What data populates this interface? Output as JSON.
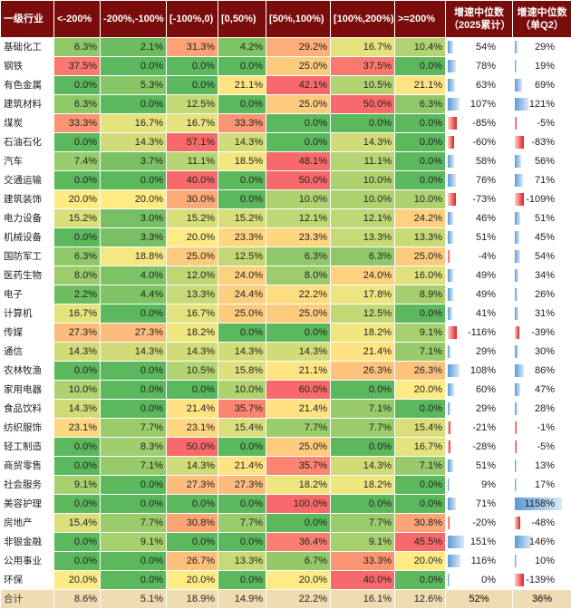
{
  "columns": [
    "一级行业",
    "<-200%",
    "-200%,-100%",
    "[-100%,0)",
    "[0,50%)",
    "[50%,100%)",
    "[100%,200%)",
    ">=200%",
    "增速中位数\n（2025累计）",
    "增速中位数\n（单Q2）"
  ],
  "rows": [
    {
      "name": "基础化工",
      "vals": [
        "6.3%",
        "2.1%",
        "31.3%",
        "4.2%",
        "29.2%",
        "16.7%",
        "10.4%"
      ],
      "g1": "54%",
      "g1v": 54,
      "g2": "29%",
      "g2v": 29
    },
    {
      "name": "钢铁",
      "vals": [
        "37.5%",
        "0.0%",
        "0.0%",
        "0.0%",
        "25.0%",
        "37.5%",
        "0.0%"
      ],
      "g1": "78%",
      "g1v": 78,
      "g2": "19%",
      "g2v": 19
    },
    {
      "name": "有色金属",
      "vals": [
        "0.0%",
        "5.3%",
        "0.0%",
        "21.1%",
        "42.1%",
        "10.5%",
        "21.1%"
      ],
      "g1": "63%",
      "g1v": 63,
      "g2": "69%",
      "g2v": 69
    },
    {
      "name": "建筑材料",
      "vals": [
        "6.3%",
        "0.0%",
        "12.5%",
        "0.0%",
        "25.0%",
        "50.0%",
        "6.3%"
      ],
      "g1": "107%",
      "g1v": 107,
      "g2": "121%",
      "g2v": 121
    },
    {
      "name": "煤炭",
      "vals": [
        "33.3%",
        "16.7%",
        "16.7%",
        "33.3%",
        "0.0%",
        "0.0%",
        "0.0%"
      ],
      "g1": "-85%",
      "g1v": -85,
      "g2": "-5%",
      "g2v": -5
    },
    {
      "name": "石油石化",
      "vals": [
        "0.0%",
        "14.3%",
        "57.1%",
        "14.3%",
        "0.0%",
        "14.3%",
        "0.0%"
      ],
      "g1": "-60%",
      "g1v": -60,
      "g2": "-83%",
      "g2v": -83
    },
    {
      "name": "汽车",
      "vals": [
        "7.4%",
        "3.7%",
        "11.1%",
        "18.5%",
        "48.1%",
        "11.1%",
        "0.0%"
      ],
      "g1": "58%",
      "g1v": 58,
      "g2": "56%",
      "g2v": 56
    },
    {
      "name": "交通运输",
      "vals": [
        "0.0%",
        "0.0%",
        "40.0%",
        "0.0%",
        "50.0%",
        "10.0%",
        "0.0%"
      ],
      "g1": "76%",
      "g1v": 76,
      "g2": "71%",
      "g2v": 71
    },
    {
      "name": "建筑装饰",
      "vals": [
        "20.0%",
        "20.0%",
        "30.0%",
        "0.0%",
        "10.0%",
        "10.0%",
        "10.0%"
      ],
      "g1": "-73%",
      "g1v": -73,
      "g2": "-109%",
      "g2v": -109
    },
    {
      "name": "电力设备",
      "vals": [
        "15.2%",
        "3.0%",
        "15.2%",
        "15.2%",
        "12.1%",
        "12.1%",
        "24.2%"
      ],
      "g1": "46%",
      "g1v": 46,
      "g2": "51%",
      "g2v": 51
    },
    {
      "name": "机械设备",
      "vals": [
        "0.0%",
        "3.3%",
        "20.0%",
        "23.3%",
        "23.3%",
        "13.3%",
        "13.3%"
      ],
      "g1": "51%",
      "g1v": 51,
      "g2": "45%",
      "g2v": 45
    },
    {
      "name": "国防军工",
      "vals": [
        "6.3%",
        "18.8%",
        "25.0%",
        "12.5%",
        "6.3%",
        "6.3%",
        "25.0%"
      ],
      "g1": "-4%",
      "g1v": -4,
      "g2": "54%",
      "g2v": 54
    },
    {
      "name": "医药生物",
      "vals": [
        "8.0%",
        "4.0%",
        "12.0%",
        "24.0%",
        "8.0%",
        "24.0%",
        "16.0%"
      ],
      "g1": "49%",
      "g1v": 49,
      "g2": "34%",
      "g2v": 34
    },
    {
      "name": "电子",
      "vals": [
        "2.2%",
        "4.4%",
        "13.3%",
        "24.4%",
        "22.2%",
        "17.8%",
        "8.9%"
      ],
      "g1": "49%",
      "g1v": 49,
      "g2": "26%",
      "g2v": 26
    },
    {
      "name": "计算机",
      "vals": [
        "16.7%",
        "0.0%",
        "16.7%",
        "25.0%",
        "25.0%",
        "12.5%",
        "0.0%"
      ],
      "g1": "41%",
      "g1v": 41,
      "g2": "31%",
      "g2v": 31
    },
    {
      "name": "传媒",
      "vals": [
        "27.3%",
        "27.3%",
        "18.2%",
        "0.0%",
        "0.0%",
        "18.2%",
        "9.1%"
      ],
      "g1": "-116%",
      "g1v": -116,
      "g2": "-39%",
      "g2v": -39
    },
    {
      "name": "通信",
      "vals": [
        "14.3%",
        "14.3%",
        "14.3%",
        "14.3%",
        "14.3%",
        "21.4%",
        "7.1%"
      ],
      "g1": "29%",
      "g1v": 29,
      "g2": "30%",
      "g2v": 30
    },
    {
      "name": "农林牧渔",
      "vals": [
        "0.0%",
        "0.0%",
        "10.5%",
        "15.8%",
        "21.1%",
        "26.3%",
        "26.3%"
      ],
      "g1": "108%",
      "g1v": 108,
      "g2": "86%",
      "g2v": 86
    },
    {
      "name": "家用电器",
      "vals": [
        "10.0%",
        "0.0%",
        "0.0%",
        "10.0%",
        "60.0%",
        "0.0%",
        "20.0%"
      ],
      "g1": "60%",
      "g1v": 60,
      "g2": "47%",
      "g2v": 47
    },
    {
      "name": "食品饮料",
      "vals": [
        "14.3%",
        "0.0%",
        "21.4%",
        "35.7%",
        "21.4%",
        "7.1%",
        "0.0%"
      ],
      "g1": "29%",
      "g1v": 29,
      "g2": "28%",
      "g2v": 28
    },
    {
      "name": "纺织服饰",
      "vals": [
        "23.1%",
        "7.7%",
        "23.1%",
        "15.4%",
        "7.7%",
        "7.7%",
        "15.4%"
      ],
      "g1": "-21%",
      "g1v": -21,
      "g2": "-1%",
      "g2v": -1
    },
    {
      "name": "轻工制造",
      "vals": [
        "0.0%",
        "8.3%",
        "50.0%",
        "0.0%",
        "25.0%",
        "0.0%",
        "16.7%"
      ],
      "g1": "-28%",
      "g1v": -28,
      "g2": "-5%",
      "g2v": -5
    },
    {
      "name": "商贸零售",
      "vals": [
        "0.0%",
        "7.1%",
        "14.3%",
        "21.4%",
        "35.7%",
        "14.3%",
        "7.1%"
      ],
      "g1": "51%",
      "g1v": 51,
      "g2": "13%",
      "g2v": 13
    },
    {
      "name": "社会服务",
      "vals": [
        "9.1%",
        "0.0%",
        "27.3%",
        "27.3%",
        "18.2%",
        "18.2%",
        "0.0%"
      ],
      "g1": "9%",
      "g1v": 9,
      "g2": "17%",
      "g2v": 17
    },
    {
      "name": "美容护理",
      "vals": [
        "0.0%",
        "0.0%",
        "0.0%",
        "0.0%",
        "100.0%",
        "0.0%",
        "0.0%"
      ],
      "g1": "71%",
      "g1v": 71,
      "g2": "1158%",
      "g2v": 1158
    },
    {
      "name": "房地产",
      "vals": [
        "15.4%",
        "7.7%",
        "30.8%",
        "7.7%",
        "0.0%",
        "7.7%",
        "30.8%"
      ],
      "g1": "-20%",
      "g1v": -20,
      "g2": "-48%",
      "g2v": -48
    },
    {
      "name": "非银金融",
      "vals": [
        "0.0%",
        "9.1%",
        "0.0%",
        "0.0%",
        "36.4%",
        "9.1%",
        "45.5%"
      ],
      "g1": "151%",
      "g1v": 151,
      "g2": "146%",
      "g2v": 146
    },
    {
      "name": "公用事业",
      "vals": [
        "0.0%",
        "0.0%",
        "26.7%",
        "13.3%",
        "6.7%",
        "33.3%",
        "20.0%"
      ],
      "g1": "116%",
      "g1v": 116,
      "g2": "10%",
      "g2v": 10
    },
    {
      "name": "环保",
      "vals": [
        "20.0%",
        "0.0%",
        "20.0%",
        "0.0%",
        "20.0%",
        "40.0%",
        "0.0%"
      ],
      "g1": "0%",
      "g1v": 0,
      "g2": "-139%",
      "g2v": -139
    }
  ],
  "total": {
    "name": "合计",
    "vals": [
      "8.6%",
      "5.1%",
      "18.9%",
      "14.9%",
      "22.2%",
      "16.1%",
      "12.6%"
    ],
    "g1": "52%",
    "g2": "36%"
  },
  "colors": {
    "header": "#7a0c0c",
    "low": "#5cb85c",
    "mid": "#ffeb84",
    "high": "#f8696b",
    "total": "#efdcb3",
    "posbar": "#5b9bd5",
    "negbar": "#e02020"
  }
}
